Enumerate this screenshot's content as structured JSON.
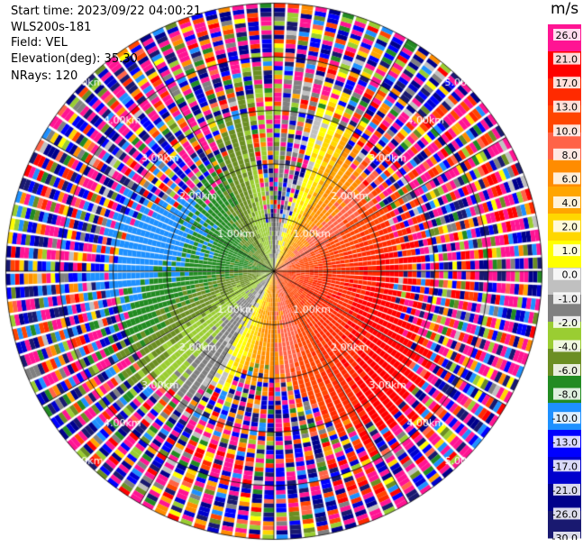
{
  "info": {
    "start_time": "Start time: 2023/09/22 04:00:21",
    "instrument": "WLS200s-181",
    "field": "Field: VEL",
    "elevation": "Elevation(deg): 35.30",
    "nrays": "NRays: 120"
  },
  "colorbar": {
    "unit": "m/s",
    "ticks": [
      "26.0",
      "21.0",
      "17.0",
      "13.0",
      "10.0",
      "8.0",
      "6.0",
      "4.0",
      "2.0",
      "1.0",
      "0.0",
      "-1.0",
      "-2.0",
      "-4.0",
      "-6.0",
      "-8.0",
      "-10.0",
      "-13.0",
      "-17.0",
      "-21.0",
      "-26.0",
      "-30.0"
    ],
    "colors": [
      "#ff1493",
      "#ff0000",
      "#ff2a00",
      "#ff4500",
      "#ff6347",
      "#ff8c00",
      "#ffa500",
      "#ffd700",
      "#ffff00",
      "#c0c0c0",
      "#808080",
      "#9acd32",
      "#6b8e23",
      "#228b22",
      "#1e90ff",
      "#0000ff",
      "#0000cd",
      "#00008b",
      "#191970"
    ]
  },
  "chart_data": {
    "type": "heatmap",
    "projection": "polar-ppi",
    "field": "VEL",
    "units": "m/s",
    "nrays": 120,
    "elevation_deg": 35.3,
    "range_rings_km": [
      1.0,
      2.0,
      3.0,
      4.0,
      5.0
    ],
    "ring_labels": [
      "1.00km",
      "2.00km",
      "3.00km",
      "4.00km",
      "5.00km"
    ],
    "max_range_km": 5.0,
    "color_scale": {
      "min": -30.0,
      "max": 26.0
    },
    "pattern": "dipole: positive (toward east) ~6-13 m/s, negative (toward west) ~-6 to -10 m/s, noisy beyond ~3 km"
  }
}
